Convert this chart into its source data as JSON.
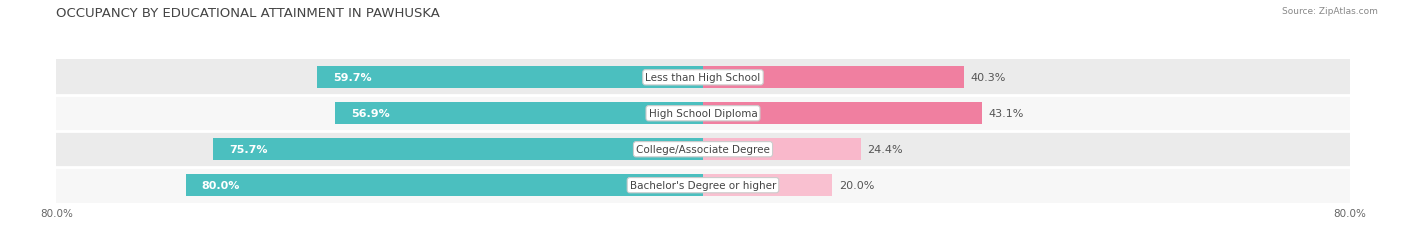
{
  "title": "OCCUPANCY BY EDUCATIONAL ATTAINMENT IN PAWHUSKA",
  "source": "Source: ZipAtlas.com",
  "categories": [
    "Less than High School",
    "High School Diploma",
    "College/Associate Degree",
    "Bachelor's Degree or higher"
  ],
  "owner_values": [
    59.7,
    56.9,
    75.7,
    80.0
  ],
  "renter_values": [
    40.3,
    43.1,
    24.4,
    20.0
  ],
  "owner_color": "#4bbfbf",
  "renter_color": "#f07fa0",
  "renter_color_light": [
    "#f48fb1",
    "#f48fb1",
    "#f9b8cb",
    "#f9c4d2"
  ],
  "row_bg_colors": [
    "#ebebeb",
    "#f7f7f7",
    "#ebebeb",
    "#f7f7f7"
  ],
  "total_width": 100.0,
  "title_fontsize": 9.5,
  "label_fontsize": 8.0,
  "value_fontsize": 8.0,
  "axis_label_fontsize": 7.5,
  "bar_height": 0.62,
  "figsize": [
    14.06,
    2.32
  ],
  "dpi": 100
}
